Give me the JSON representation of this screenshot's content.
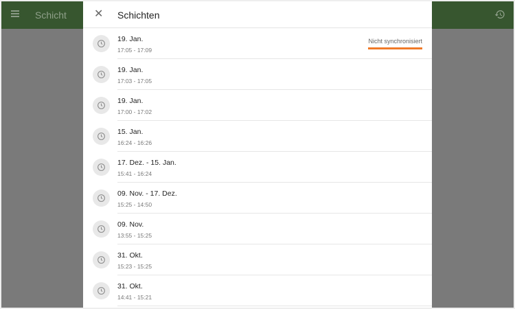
{
  "app": {
    "title": "Schicht",
    "menu_icon": "menu-icon",
    "history_icon": "history-icon",
    "accent": "#37562f"
  },
  "dialog": {
    "title": "Schichten",
    "close_icon": "close-icon",
    "items": [
      {
        "date": "19. Jan.",
        "time": "17:05 - 17:09",
        "status": "Nicht synchronisiert"
      },
      {
        "date": "19. Jan.",
        "time": "17:03 - 17:05"
      },
      {
        "date": "19. Jan.",
        "time": "17:00 - 17:02"
      },
      {
        "date": "15. Jan.",
        "time": "16:24 - 16:26"
      },
      {
        "date": "17. Dez. - 15. Jan.",
        "time": "15:41 - 16:24"
      },
      {
        "date": "09. Nov. - 17. Dez.",
        "time": "15:25 - 14:50"
      },
      {
        "date": "09. Nov.",
        "time": "13:55 - 15:25"
      },
      {
        "date": "31. Okt.",
        "time": "15:23 - 15:25"
      },
      {
        "date": "31. Okt.",
        "time": "14:41 - 15:21"
      }
    ]
  }
}
